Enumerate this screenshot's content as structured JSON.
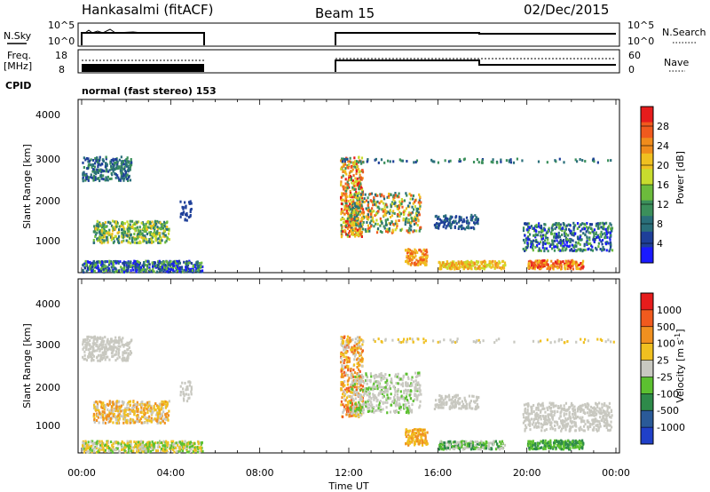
{
  "header": {
    "station": "Hankasalmi (fitACF)",
    "beam": "Beam 15",
    "date": "02/Dec/2015"
  },
  "params": {
    "nsky_label": "N.Sky",
    "nsky_ticks": [
      "10^5",
      "10^0"
    ],
    "nsearch_label": "N.Search",
    "nsearch_ticks": [
      "10^5",
      "10^0"
    ],
    "freq_label_line1": "Freq.",
    "freq_label_line2": "[MHz]",
    "freq_ticks": [
      "18",
      "8"
    ],
    "nave_label": "Nave",
    "nave_ticks": [
      "60",
      "0"
    ],
    "cpid_label": "CPID",
    "cpid_text": "normal (fast stereo) 153"
  },
  "chart_data": [
    {
      "type": "heatmap",
      "name": "power-panel",
      "ylabel": "Slant Range [km]",
      "yticks": [
        "4000",
        "3000",
        "2000",
        "1000"
      ],
      "ylim": [
        180,
        4500
      ],
      "xlim_hours": [
        0,
        24
      ],
      "colorbar": {
        "label": "Power [dB]",
        "ticks": [
          "28",
          "24",
          "20",
          "16",
          "12",
          "8",
          "4"
        ],
        "colors": [
          "#1a1aff",
          "#1e3f99",
          "#2a6f7a",
          "#3b8f5b",
          "#6cbb3c",
          "#c8dc2e",
          "#f0c020",
          "#f08c1c",
          "#f05a1e",
          "#e61c1c"
        ]
      },
      "data_gaps_hours": [
        [
          5.5,
          11.6
        ]
      ]
    },
    {
      "type": "heatmap",
      "name": "velocity-panel",
      "ylabel": "Slant Range [km]",
      "yticks": [
        "4000",
        "3000",
        "2000",
        "1000"
      ],
      "ylim": [
        180,
        4500
      ],
      "xlim_hours": [
        0,
        24
      ],
      "colorbar": {
        "label_main": "Velocity [m s",
        "label_sup": "-1",
        "label_end": "]",
        "ticks": [
          "1000",
          "500",
          "100",
          "25",
          "-25",
          "-100",
          "-500",
          "-1000"
        ],
        "colors": [
          "#2040c8",
          "#2a5a98",
          "#2e8a4a",
          "#5cc030",
          "#c8c8c0",
          "#f0c020",
          "#f09020",
          "#f05a1e",
          "#e61c1c"
        ]
      },
      "data_gaps_hours": [
        [
          5.5,
          11.6
        ]
      ]
    }
  ],
  "xaxis": {
    "ticks": [
      "00:00",
      "04:00",
      "08:00",
      "12:00",
      "16:00",
      "20:00",
      "00:00"
    ],
    "label": "Time UT"
  }
}
